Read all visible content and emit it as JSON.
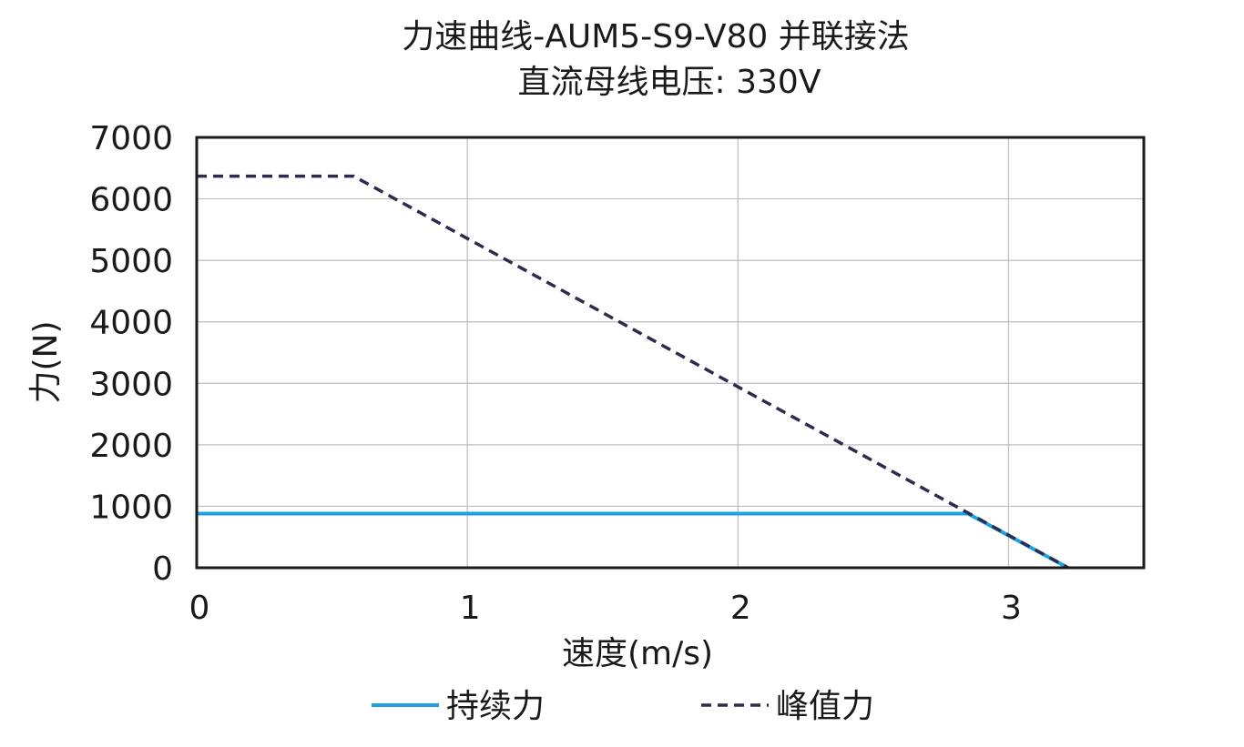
{
  "chart_data": {
    "type": "line",
    "title": "力速曲线-AUM5-S9-V80 并联接法",
    "subtitle": "直流母线电压: 330V",
    "xlabel": "速度(m/s)",
    "ylabel": "力(N)",
    "xlim": [
      0,
      3.5
    ],
    "ylim": [
      0,
      7000
    ],
    "x_ticks": [
      0,
      1,
      2,
      3
    ],
    "y_ticks": [
      0,
      1000,
      2000,
      3000,
      4000,
      5000,
      6000,
      7000
    ],
    "grid": true,
    "legend_position": "bottom",
    "series": [
      {
        "name": "持续力",
        "color": "#1ba1e2",
        "style": "solid",
        "x": [
          0,
          2.85,
          3.22
        ],
        "y": [
          880,
          880,
          0
        ]
      },
      {
        "name": "峰值力",
        "color": "#2a2d4f",
        "style": "dashed",
        "x": [
          0,
          0.58,
          3.22
        ],
        "y": [
          6370,
          6370,
          0
        ]
      }
    ]
  }
}
